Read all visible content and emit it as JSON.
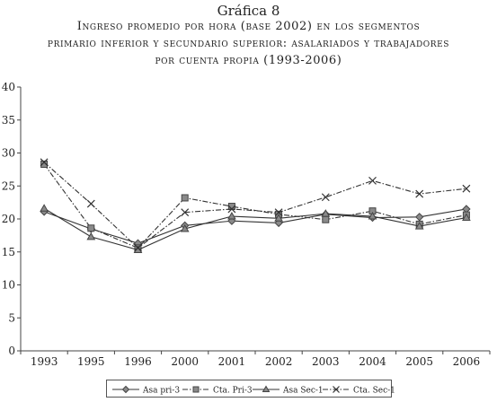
{
  "header": {
    "chart_number": "Gráfica 8",
    "title_lines": [
      "Ingreso promedio por hora (base 2002) en los segmentos",
      "primario inferior y secundario superior: asalariados y trabajadores",
      "por cuenta propia (1993-2006)"
    ]
  },
  "chart_data": {
    "type": "line",
    "title": "Ingreso promedio por hora (base 2002) en los segmentos primario inferior y secundario superior: asalariados y trabajadores por cuenta propia (1993-2006)",
    "categories": [
      "1993",
      "1995",
      "1996",
      "2000",
      "2001",
      "2002",
      "2003",
      "2004",
      "2005",
      "2006"
    ],
    "ylim": [
      0,
      40
    ],
    "yticks": [
      0,
      5,
      10,
      15,
      20,
      25,
      30,
      35,
      40
    ],
    "grid": false,
    "legend_position": "bottom",
    "series": [
      {
        "name": "Asa pri-3",
        "marker": "diamond",
        "dash": "solid",
        "values": [
          21.1,
          18.5,
          16.3,
          19.0,
          19.7,
          19.4,
          20.7,
          20.2,
          20.3,
          21.5
        ]
      },
      {
        "name": "Cta. Pri-3",
        "marker": "square",
        "dash": "dashdot",
        "values": [
          28.3,
          18.6,
          15.6,
          23.2,
          21.9,
          20.7,
          19.9,
          21.2,
          19.2,
          20.6
        ]
      },
      {
        "name": "Asa Sec-1",
        "marker": "triangle",
        "dash": "solid",
        "values": [
          21.6,
          17.3,
          15.3,
          18.5,
          20.4,
          20.1,
          20.8,
          20.4,
          18.9,
          20.2
        ]
      },
      {
        "name": "Cta. Sec-1",
        "marker": "x",
        "dash": "dashdot",
        "values": [
          28.6,
          22.3,
          15.6,
          21.0,
          21.5,
          21.0,
          23.3,
          25.8,
          23.8,
          24.6
        ]
      }
    ]
  }
}
